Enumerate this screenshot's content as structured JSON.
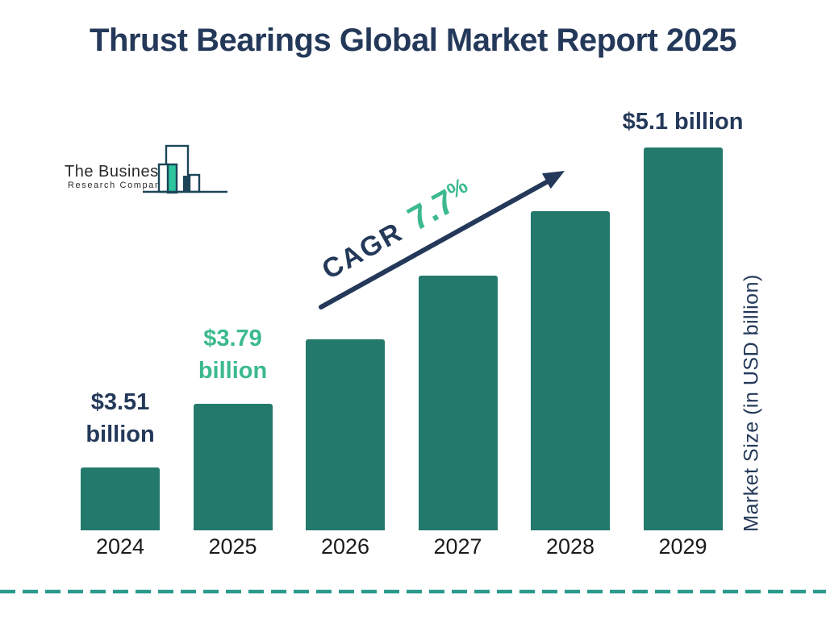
{
  "title": "Thrust Bearings Global Market Report 2025",
  "logo": {
    "line1": "The Business",
    "line2": "Research Company"
  },
  "cagr": {
    "label": "CAGR",
    "value": "7.7",
    "unit": "%"
  },
  "axis": {
    "y_label": "Market Size (in USD billion)"
  },
  "colors": {
    "navy": "#24395A",
    "bar_teal": "#23796C",
    "green": "#3CBA8D",
    "dash_teal": "#2B9A8E",
    "logo_outline": "#1C4558",
    "logo_fill": "#2EC49F",
    "year_text": "#1B1B1B"
  },
  "chart_data": {
    "type": "bar",
    "title": "Thrust Bearings Global Market Report 2025",
    "categories": [
      "2024",
      "2025",
      "2026",
      "2027",
      "2028",
      "2029"
    ],
    "values": [
      3.51,
      3.79,
      4.08,
      4.4,
      4.73,
      5.1
    ],
    "values_estimated": [
      false,
      false,
      true,
      true,
      true,
      false
    ],
    "unit": "USD billion",
    "xlabel": "",
    "ylabel": "Market Size (in USD billion)",
    "cagr_annotation": "CAGR 7.7%",
    "legend": "none",
    "grid": false,
    "bar_labels": [
      {
        "lines": [
          "$3.51",
          "billion"
        ],
        "color": "#24395A"
      },
      {
        "lines": [
          "$3.79",
          "billion"
        ],
        "color": "#3CBA8D"
      },
      null,
      null,
      null,
      {
        "lines": [
          "$5.1 billion"
        ],
        "color": "#24395A"
      }
    ]
  }
}
